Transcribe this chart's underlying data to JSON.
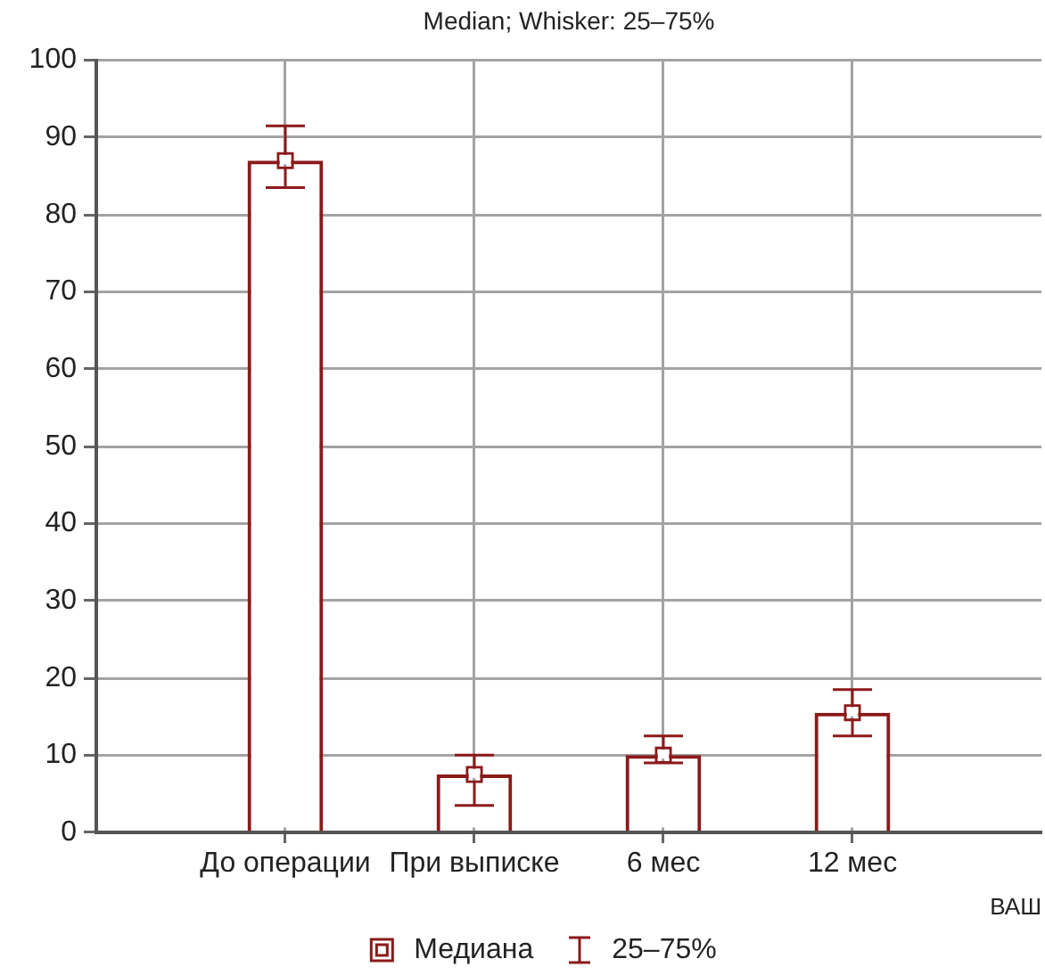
{
  "chart_data": {
    "type": "bar",
    "title": "Median; Whisker: 25–75%",
    "xlabel": "ВАШ",
    "categories": [
      null,
      "До операции",
      "При выписке",
      "6 мес",
      "12 мес",
      null
    ],
    "series": [
      {
        "name": "Медиана",
        "color": "#8b1a1a",
        "values": [
          null,
          87,
          7.5,
          10,
          15.5,
          null
        ],
        "errors": [
          null,
          [
            83.5,
            91.5
          ],
          [
            3.5,
            10
          ],
          [
            9,
            12.5
          ],
          [
            12.5,
            18.5
          ],
          null
        ]
      },
      {
        "type": "scatter",
        "color": "#8b1a1a",
        "values": [
          null,
          87,
          7.5,
          10,
          15.5,
          null
        ]
      }
    ],
    "ylim": [
      0,
      100
    ],
    "yticks": [
      0,
      10,
      20,
      30,
      40,
      50,
      60,
      70,
      80,
      90,
      100
    ],
    "grid": true,
    "legend": "bottom",
    "marker": "square",
    "annotations": [
      "25–75%"
    ]
  }
}
